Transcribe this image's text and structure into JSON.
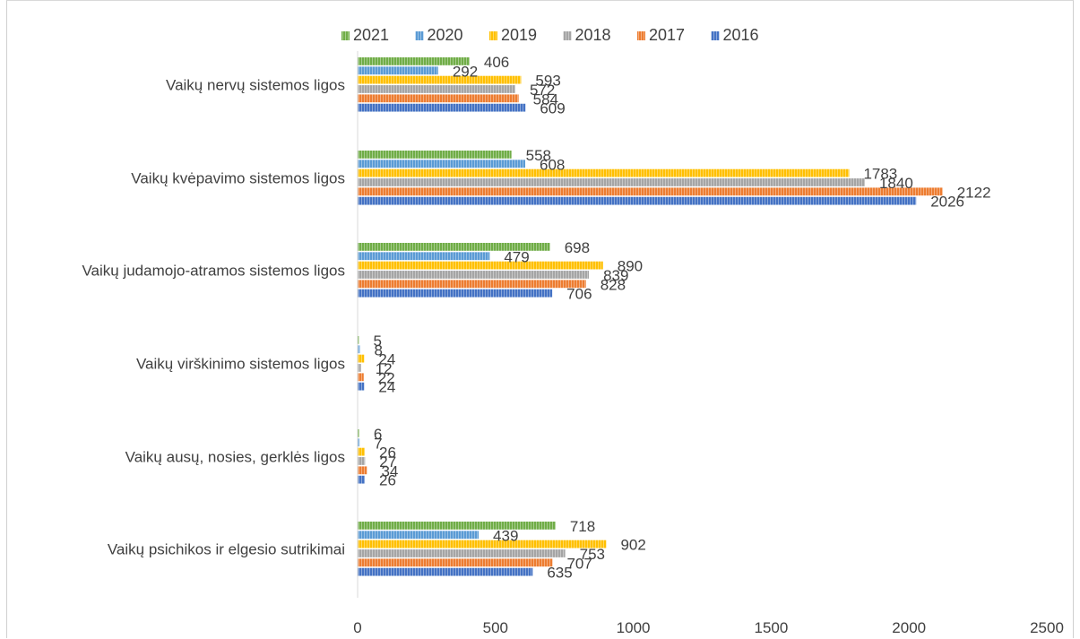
{
  "chart_data": {
    "type": "bar",
    "orientation": "horizontal",
    "title": "",
    "xlabel": "",
    "ylabel": "",
    "xlim": [
      0,
      2500
    ],
    "x_ticks": [
      0,
      500,
      1000,
      1500,
      2000,
      2500
    ],
    "grid": false,
    "legend_position": "top",
    "categories": [
      "Vaikų nervų sistemos ligos",
      "Vaikų kvėpavimo sistemos ligos",
      "Vaikų judamojo-atramos sistemos ligos",
      "Vaikų virškinimo sistemos ligos",
      "Vaikų ausų, nosies, gerklės ligos",
      "Vaikų psichikos ir elgesio sutrikimai"
    ],
    "series": [
      {
        "name": "2021",
        "color": "#70ad47",
        "values": [
          406,
          558,
          698,
          5,
          6,
          718
        ]
      },
      {
        "name": "2020",
        "color": "#5b9bd5",
        "values": [
          292,
          608,
          479,
          8,
          7,
          439
        ]
      },
      {
        "name": "2019",
        "color": "#ffc000",
        "values": [
          593,
          1783,
          890,
          24,
          26,
          902
        ]
      },
      {
        "name": "2018",
        "color": "#a5a5a5",
        "values": [
          572,
          1840,
          839,
          12,
          27,
          753
        ]
      },
      {
        "name": "2017",
        "color": "#ed7d31",
        "values": [
          584,
          2122,
          828,
          22,
          34,
          707
        ]
      },
      {
        "name": "2016",
        "color": "#4472c4",
        "values": [
          609,
          2026,
          706,
          24,
          26,
          635
        ]
      }
    ]
  }
}
